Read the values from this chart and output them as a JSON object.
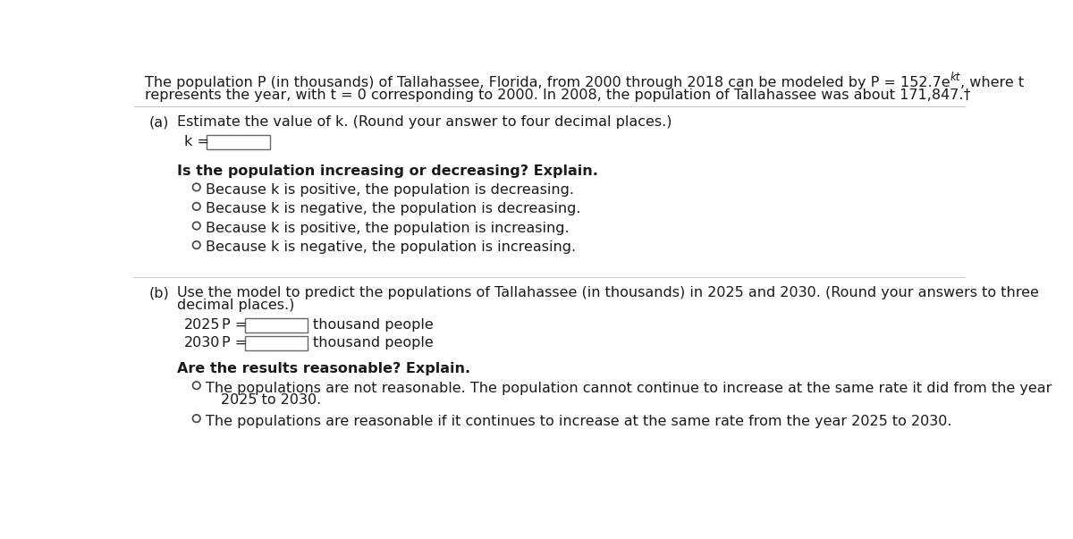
{
  "bg_color": "#ffffff",
  "text_color": "#1a1a1a",
  "font_size": 11.5,
  "header_pre": "The population P (in thousands) of Tallahassee, Florida, from 2000 through 2018 can be modeled by P = 152.7e",
  "header_sup": "kt",
  "header_post": ", where t",
  "header_line2": "represents the year, with t = 0 corresponding to 2000. In 2008, the population of Tallahassee was about 171,847.†",
  "part_a_label": "(a)",
  "part_a_text": "Estimate the value of k. (Round your answer to four decimal places.)",
  "k_label": "k =",
  "increasing_question": "Is the population increasing or decreasing? Explain.",
  "options_a": [
    "Because k is positive, the population is decreasing.",
    "Because k is negative, the population is decreasing.",
    "Because k is positive, the population is increasing.",
    "Because k is negative, the population is increasing."
  ],
  "part_b_label": "(b)",
  "part_b_line1": "Use the model to predict the populations of Tallahassee (in thousands) in 2025 and 2030. (Round your answers to three",
  "part_b_line2": "decimal places.)",
  "year_2025": "2025",
  "year_2030": "2030",
  "p_eq": "P =",
  "thousand_people": "thousand people",
  "reasonable_question": "Are the results reasonable? Explain.",
  "opt_b1_line1": "The populations are not reasonable. The population cannot continue to increase at the same rate it did from the year",
  "opt_b1_line2": "2025 to 2030.",
  "opt_b2": "The populations are reasonable if it continues to increase at the same rate from the year 2025 to 2030."
}
